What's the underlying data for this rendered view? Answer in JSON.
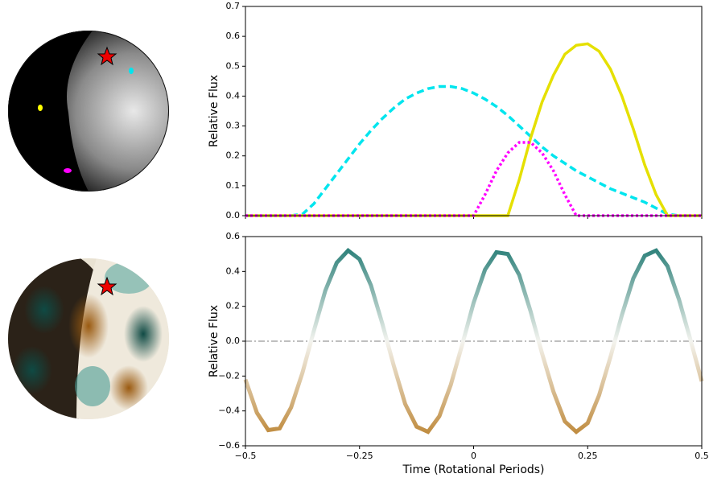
{
  "chart_data": [
    {
      "type": "line",
      "ylabel": "Relative Flux",
      "xlim": [
        -0.5,
        0.5
      ],
      "ylim": [
        0,
        0.7
      ],
      "yticks": [
        {
          "value": 0,
          "label": "0.0"
        },
        0.1,
        0.2,
        0.3,
        0.4,
        0.5,
        0.6,
        0.7
      ],
      "x": [
        -0.5,
        -0.475,
        -0.45,
        -0.425,
        -0.4,
        -0.375,
        -0.35,
        -0.325,
        -0.3,
        -0.275,
        -0.25,
        -0.225,
        -0.2,
        -0.175,
        -0.15,
        -0.125,
        -0.1,
        -0.075,
        -0.05,
        -0.025,
        0,
        0.025,
        0.05,
        0.075,
        0.1,
        0.125,
        0.15,
        0.175,
        0.2,
        0.225,
        0.25,
        0.275,
        0.3,
        0.325,
        0.35,
        0.375,
        0.4,
        0.425,
        0.45,
        0.475,
        0.5
      ],
      "series": [
        {
          "color": "#00e5ee",
          "dash": "dashed",
          "values": [
            0,
            0,
            0,
            0,
            0,
            0.005,
            0.04,
            0.09,
            0.14,
            0.19,
            0.24,
            0.285,
            0.325,
            0.36,
            0.39,
            0.41,
            0.425,
            0.432,
            0.432,
            0.425,
            0.41,
            0.39,
            0.365,
            0.335,
            0.3,
            0.265,
            0.23,
            0.2,
            0.175,
            0.15,
            0.13,
            0.11,
            0.09,
            0.075,
            0.06,
            0.045,
            0.025,
            0.005,
            0,
            0,
            0
          ]
        },
        {
          "color": "#e5e000",
          "dash": "solid",
          "values": [
            0,
            0,
            0,
            0,
            0,
            0,
            0,
            0,
            0,
            0,
            0,
            0,
            0,
            0,
            0,
            0,
            0,
            0,
            0,
            0,
            0,
            0,
            0,
            0,
            0.12,
            0.26,
            0.38,
            0.47,
            0.54,
            0.57,
            0.575,
            0.55,
            0.49,
            0.4,
            0.29,
            0.17,
            0.07,
            0,
            0,
            0,
            0
          ]
        },
        {
          "color": "#ff00ff",
          "dash": "dotted",
          "values": [
            0,
            0,
            0,
            0,
            0,
            0,
            0,
            0,
            0,
            0,
            0,
            0,
            0,
            0,
            0,
            0,
            0,
            0,
            0,
            0,
            0,
            0.07,
            0.15,
            0.21,
            0.245,
            0.245,
            0.21,
            0.15,
            0.07,
            0,
            0,
            0,
            0,
            0,
            0,
            0,
            0,
            0,
            0,
            0,
            0
          ]
        }
      ]
    },
    {
      "type": "line",
      "ylabel": "Relative Flux",
      "xlabel": "Time (Rotational Periods)",
      "xlim": [
        -0.5,
        0.5
      ],
      "ylim": [
        -0.6,
        0.6
      ],
      "xticks": [
        {
          "value": -0.5,
          "label": "−0.5"
        },
        {
          "value": -0.25,
          "label": "−0.25"
        },
        0,
        0.25,
        0.5
      ],
      "yticks": [
        {
          "value": -0.6,
          "label": "−0.6"
        },
        {
          "value": -0.4,
          "label": "−0.4"
        },
        {
          "value": -0.2,
          "label": "−0.2"
        },
        {
          "value": 0,
          "label": "0.0"
        },
        0.2,
        0.4,
        0.6
      ],
      "reference_line": 0,
      "reference_color": "#aaaaaa",
      "gradient_colors": [
        "#2a7f78",
        "#f3f3ee",
        "#bf8a3c"
      ],
      "x": [
        -0.5,
        -0.475,
        -0.45,
        -0.425,
        -0.4,
        -0.375,
        -0.35,
        -0.325,
        -0.3,
        -0.275,
        -0.25,
        -0.225,
        -0.2,
        -0.175,
        -0.15,
        -0.125,
        -0.1,
        -0.075,
        -0.05,
        -0.025,
        0,
        0.025,
        0.05,
        0.075,
        0.1,
        0.125,
        0.15,
        0.175,
        0.2,
        0.225,
        0.25,
        0.275,
        0.3,
        0.325,
        0.35,
        0.375,
        0.4,
        0.425,
        0.45,
        0.475,
        0.5
      ],
      "series": [
        {
          "dash": "solid",
          "values": [
            -0.22,
            -0.41,
            -0.51,
            -0.5,
            -0.38,
            -0.18,
            0.06,
            0.29,
            0.45,
            0.52,
            0.47,
            0.32,
            0.1,
            -0.14,
            -0.36,
            -0.49,
            -0.52,
            -0.43,
            -0.25,
            -0.02,
            0.22,
            0.41,
            0.51,
            0.5,
            0.38,
            0.17,
            -0.07,
            -0.29,
            -0.46,
            -0.52,
            -0.47,
            -0.31,
            -0.09,
            0.15,
            0.36,
            0.49,
            0.52,
            0.43,
            0.24,
            0.01,
            -0.23
          ]
        }
      ]
    }
  ]
}
